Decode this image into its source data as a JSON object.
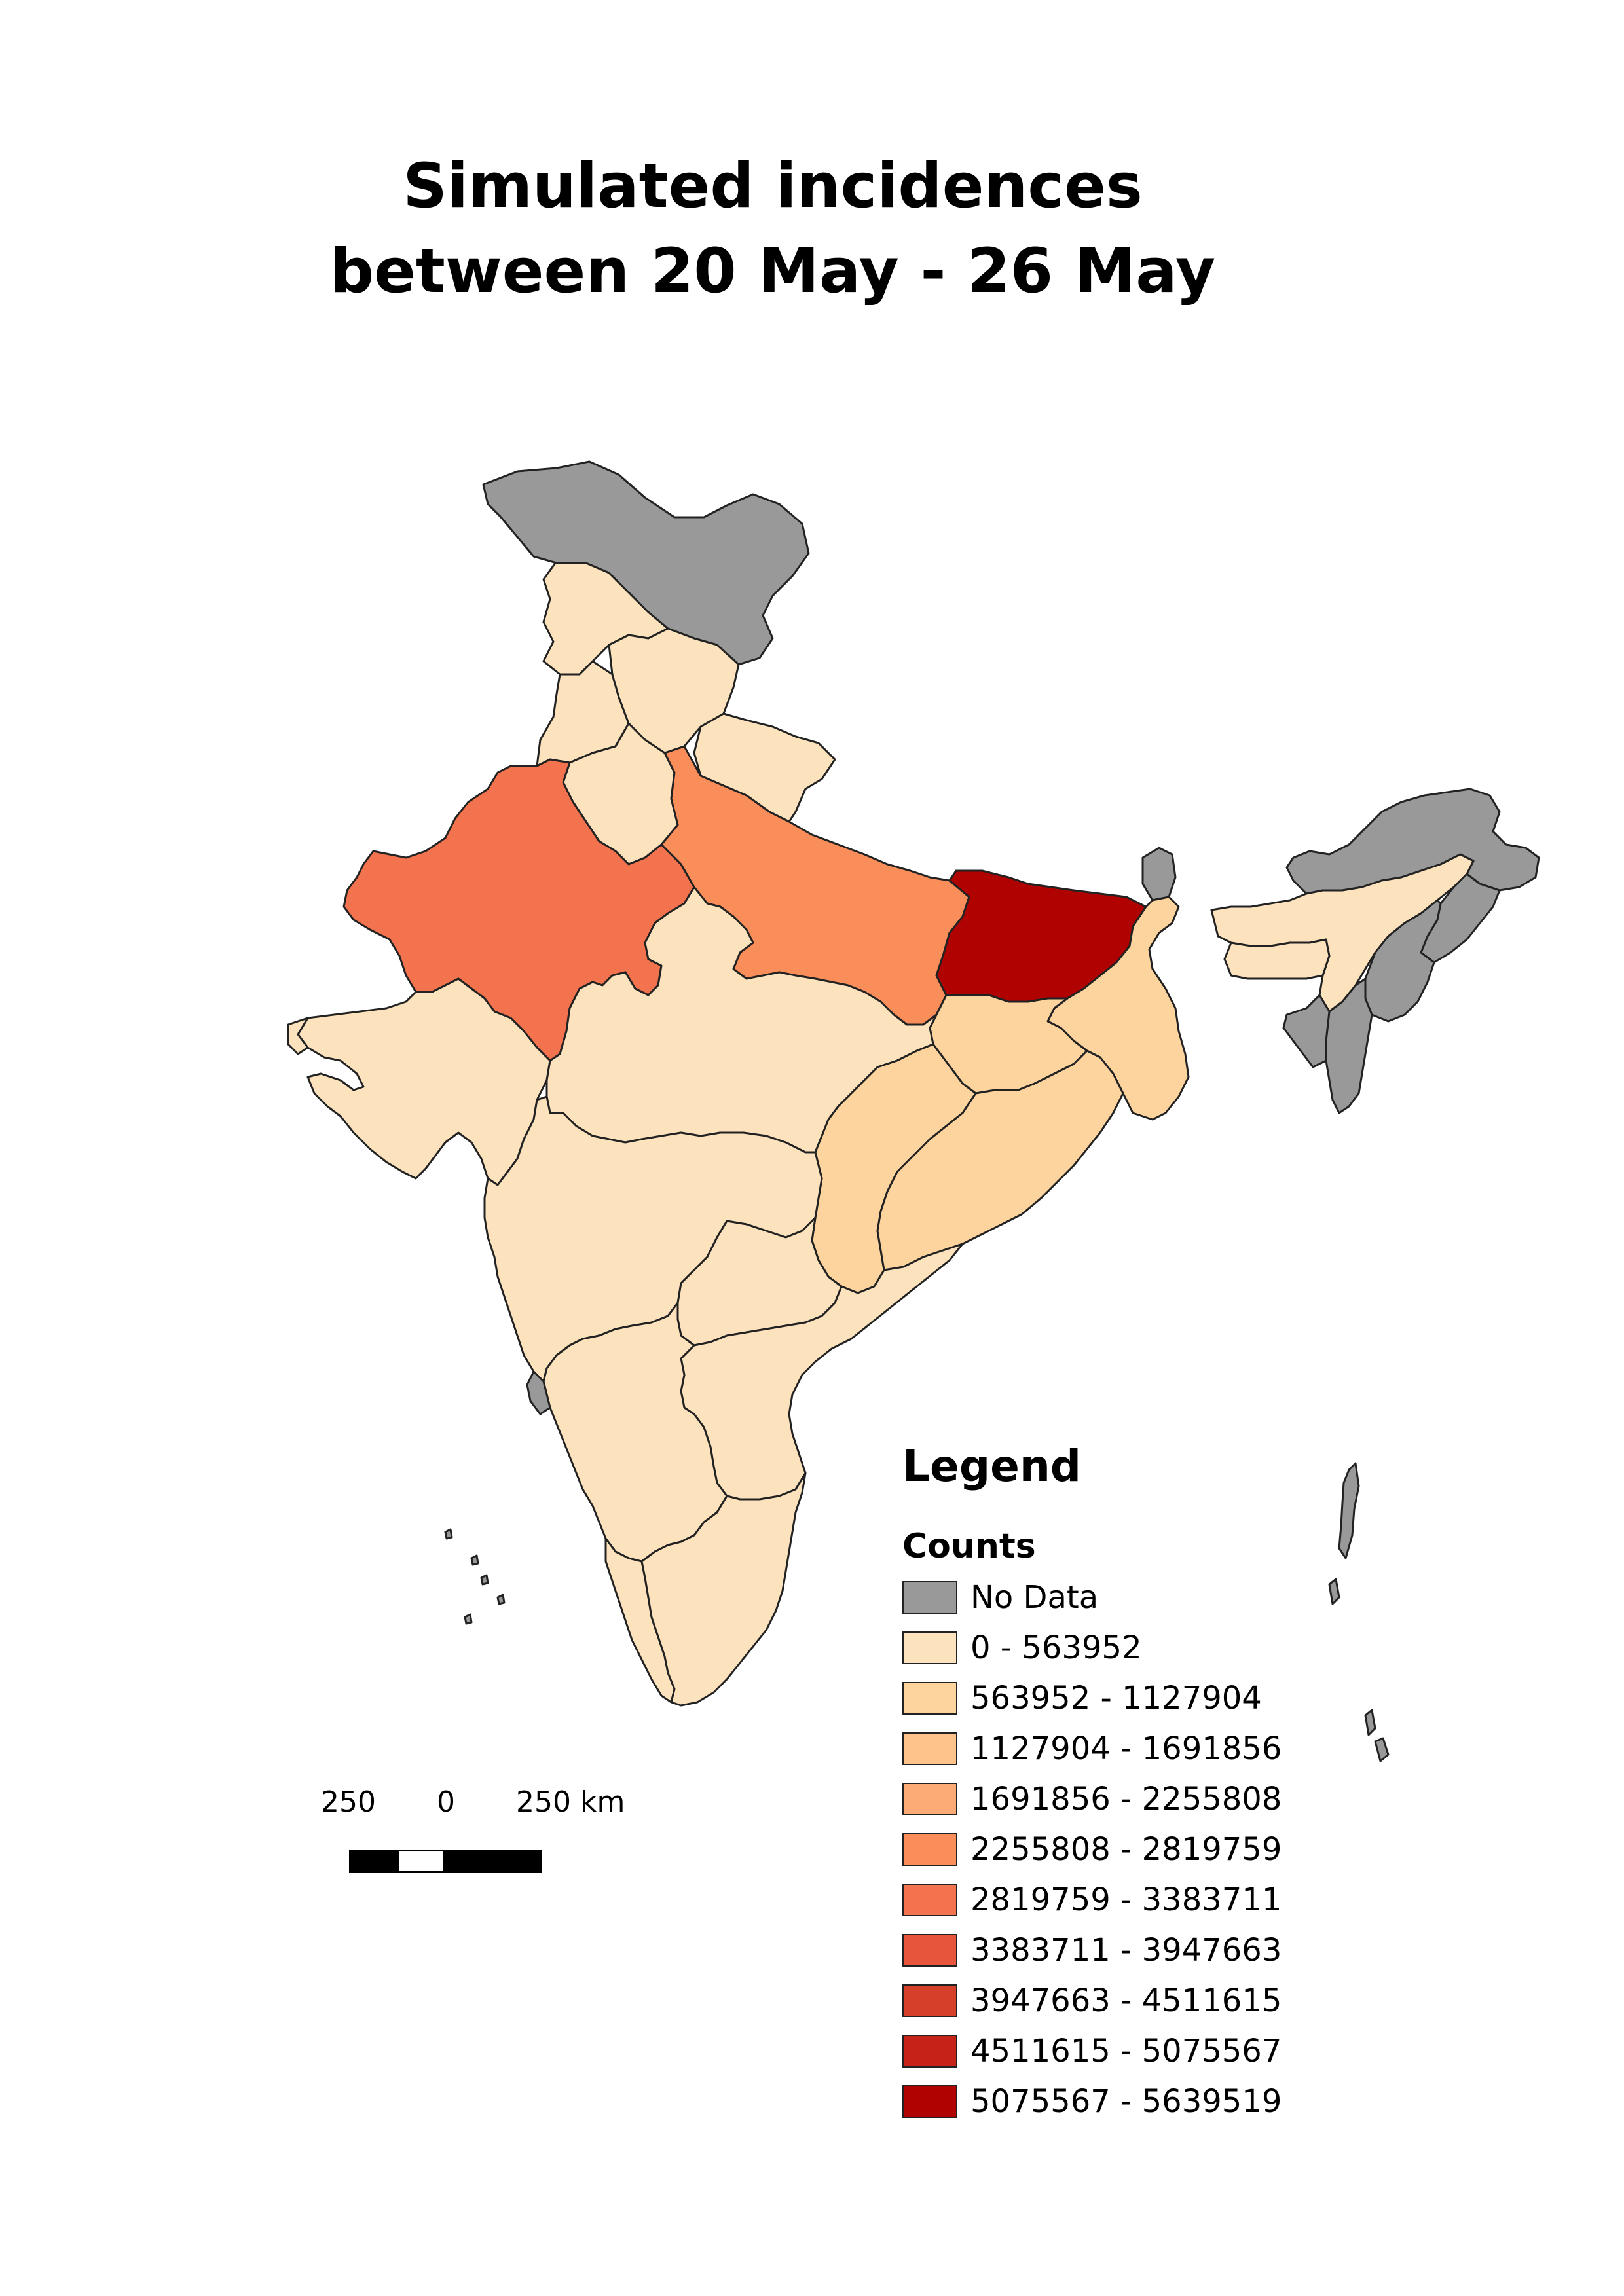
{
  "title": {
    "line1": "Simulated incidences",
    "line2": "between 20 May - 26 May"
  },
  "legend": {
    "heading": "Legend",
    "subheading": "Counts",
    "items": [
      {
        "label": "No Data",
        "color": "#999999"
      },
      {
        "label": "0 - 563952",
        "color": "#fde3bd"
      },
      {
        "label": "563952 - 1127904",
        "color": "#fdd49e"
      },
      {
        "label": "1127904 - 1691856",
        "color": "#fdc38b"
      },
      {
        "label": "1691856 - 2255808",
        "color": "#fcaa76"
      },
      {
        "label": "2255808 - 2819759",
        "color": "#f98e5b"
      },
      {
        "label": "2819759 - 3383711",
        "color": "#f2734d"
      },
      {
        "label": "3383711 - 3947663",
        "color": "#e6553c"
      },
      {
        "label": "3947663 - 4511615",
        "color": "#d6402b"
      },
      {
        "label": "4511615 - 5075567",
        "color": "#c72218"
      },
      {
        "label": "5075567 - 5639519",
        "color": "#b10202"
      }
    ]
  },
  "scale_bar": {
    "left_label": "250",
    "mid_label": "0",
    "right_label": "250 km"
  },
  "map": {
    "regions": [
      {
        "name": "jammu-kashmir",
        "class": 0
      },
      {
        "name": "himachal-pradesh",
        "class": 1
      },
      {
        "name": "punjab",
        "class": 1
      },
      {
        "name": "uttarakhand",
        "class": 1
      },
      {
        "name": "haryana",
        "class": 1
      },
      {
        "name": "rajasthan",
        "class": 6
      },
      {
        "name": "uttar-pradesh",
        "class": 5
      },
      {
        "name": "bihar",
        "class": 10
      },
      {
        "name": "sikkim",
        "class": 0
      },
      {
        "name": "west-bengal",
        "class": 2
      },
      {
        "name": "jharkhand",
        "class": 2
      },
      {
        "name": "gujarat",
        "class": 1
      },
      {
        "name": "madhya-pradesh",
        "class": 1
      },
      {
        "name": "chhattisgarh",
        "class": 2
      },
      {
        "name": "odisha",
        "class": 2
      },
      {
        "name": "maharashtra",
        "class": 1
      },
      {
        "name": "telangana",
        "class": 1
      },
      {
        "name": "andhra-pradesh",
        "class": 1
      },
      {
        "name": "karnataka",
        "class": 1
      },
      {
        "name": "goa",
        "class": 0
      },
      {
        "name": "kerala",
        "class": 1
      },
      {
        "name": "tamil-nadu",
        "class": 1
      },
      {
        "name": "arunachal-pradesh",
        "class": 0
      },
      {
        "name": "assam",
        "class": 1
      },
      {
        "name": "meghalaya",
        "class": 1
      },
      {
        "name": "nagaland",
        "class": 0
      },
      {
        "name": "manipur",
        "class": 0
      },
      {
        "name": "mizoram",
        "class": 0
      },
      {
        "name": "tripura",
        "class": 0
      },
      {
        "name": "delhi",
        "class": 5
      },
      {
        "name": "andaman-nicobar",
        "class": 0
      },
      {
        "name": "lakshadweep",
        "class": 0
      }
    ]
  }
}
